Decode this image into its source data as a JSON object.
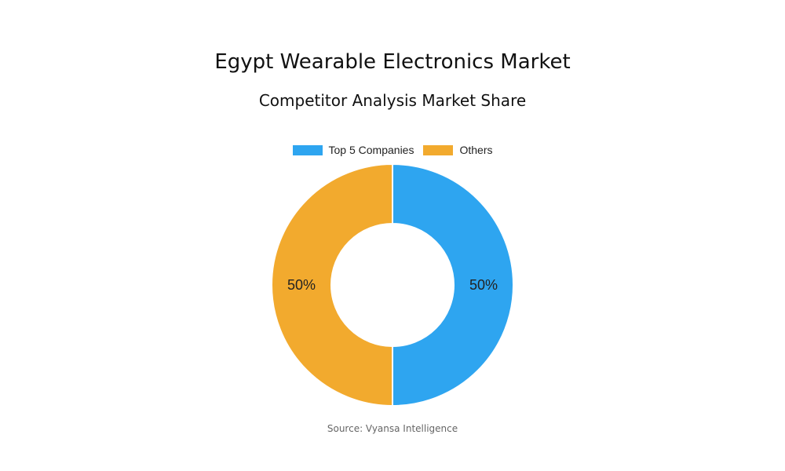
{
  "title": "Egypt Wearable Electronics Market",
  "subtitle": "Competitor Analysis Market Share",
  "source": "Source: Vyansa Intelligence",
  "chart_data": {
    "type": "pie",
    "donut": true,
    "title": "Egypt Wearable Electronics Market",
    "subtitle": "Competitor Analysis Market Share",
    "categories": [
      "Top 5 Companies",
      "Others"
    ],
    "values": [
      50,
      50
    ],
    "labels": [
      "50%",
      "50%"
    ],
    "colors": [
      "#2EA5F0",
      "#F2AA2E"
    ],
    "legend": "top"
  }
}
